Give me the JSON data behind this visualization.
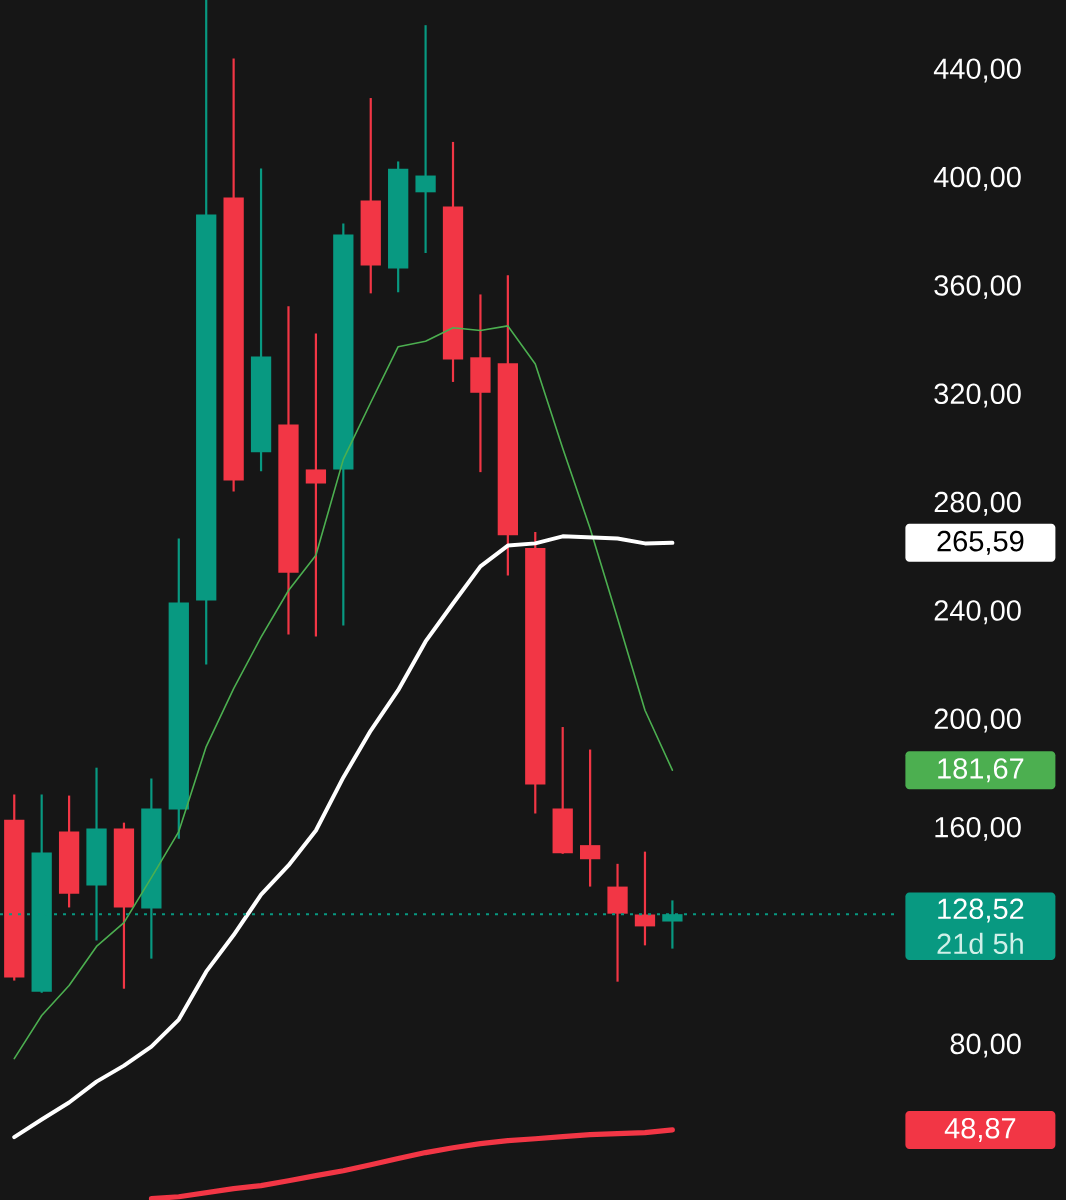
{
  "chart_data": {
    "type": "candlestick",
    "categories": [
      null,
      null,
      null,
      null,
      null,
      null,
      null,
      null,
      null,
      null,
      null,
      null,
      null,
      null,
      null,
      null,
      null,
      null,
      null,
      null,
      null,
      null,
      null,
      null,
      null
    ],
    "ylim": [
      23,
      466
    ],
    "yticks": [
      {
        "value": 80,
        "label": "80,00"
      },
      {
        "value": 160,
        "label": "160,00"
      },
      {
        "value": 200,
        "label": "200,00"
      },
      {
        "value": 240,
        "label": "240,00"
      },
      {
        "value": 280,
        "label": "280,00"
      },
      {
        "value": 320,
        "label": "320,00"
      },
      {
        "value": 360,
        "label": "360,00"
      },
      {
        "value": 400,
        "label": "400,00"
      },
      {
        "value": 440,
        "label": "440,00"
      }
    ],
    "series": [
      {
        "type": "line",
        "color": "#4caf50",
        "values": [
          75.2,
          91.1,
          102.2,
          116.6,
          125.4,
          142,
          159,
          190.4,
          211.8,
          230.8,
          248,
          261,
          296.4,
          317.4,
          338,
          340,
          345,
          344,
          345.7,
          331.6,
          300.5,
          270.9,
          237.7,
          203.8,
          181.67
        ]
      },
      {
        "type": "line",
        "color": "#ffffff",
        "values": [
          46.2,
          52.7,
          59,
          66.7,
          72.6,
          79.6,
          89.6,
          107.3,
          120.8,
          135.7,
          146.5,
          159.4,
          179,
          196.3,
          211.2,
          229.2,
          243.2,
          256.9,
          264.6,
          265.4,
          268,
          267.6,
          267.2,
          265.4,
          265.59
        ]
      },
      {
        "type": "line",
        "color": "#f23645",
        "values": [
          null,
          null,
          null,
          null,
          null,
          23.5,
          24.2,
          25.7,
          27.2,
          28.3,
          30.1,
          32,
          33.8,
          36,
          38.3,
          40.5,
          42.3,
          43.8,
          44.9,
          45.6,
          46.4,
          47.1,
          47.5,
          47.9,
          48.87
        ]
      },
      {
        "ohlc": [
          [
            163.4,
            172.7,
            104,
            105.1
          ],
          [
            99.9,
            172.7,
            99.5,
            151.3
          ],
          [
            159,
            172.3,
            131,
            136.1
          ],
          [
            139.1,
            182.6,
            118.8,
            160.1
          ],
          [
            160.1,
            162.3,
            101,
            131
          ],
          [
            130.6,
            178.6,
            112.1,
            167.5
          ],
          [
            167.2,
            267.2,
            156.4,
            243.6
          ],
          [
            244.3,
            466,
            220.7,
            386.8
          ],
          [
            393.1,
            444.4,
            284.6,
            288.6
          ],
          [
            299,
            403.8,
            292,
            334.4
          ],
          [
            309.3,
            352.9,
            231.8,
            254.6
          ],
          [
            292.7,
            342.9,
            231,
            287.5
          ],
          [
            292.7,
            383.5,
            235.1,
            379.4
          ],
          [
            392,
            429.8,
            357.7,
            368
          ],
          [
            366.9,
            406.4,
            358.1,
            403.7
          ],
          [
            395,
            456.7,
            372.6,
            401.2
          ],
          [
            389.8,
            413.6,
            325,
            333.3
          ],
          [
            334.1,
            357.3,
            291.7,
            321
          ],
          [
            331.9,
            364.4,
            253.5,
            268.4
          ],
          [
            263.7,
            269.6,
            165.7,
            176.4
          ],
          [
            167.5,
            197.6,
            150.8,
            151
          ],
          [
            154,
            189.3,
            138.7,
            148.8
          ],
          [
            138.7,
            147.1,
            103.6,
            128.7
          ],
          [
            128.4,
            151.6,
            117,
            124
          ],
          [
            125.8,
            133.6,
            115.8,
            128.52
          ]
        ],
        "colors": [
          "#f23645",
          "#089981",
          "#f23645",
          "#089981",
          "#f23645",
          "#089981",
          "#089981",
          "#089981",
          "#f23645",
          "#089981",
          "#f23645",
          "#f23645",
          "#089981",
          "#f23645",
          "#089981",
          "#089981",
          "#f23645",
          "#f23645",
          "#f23645",
          "#f23645",
          "#f23645",
          "#f23645",
          "#f23645",
          "#f23645",
          "#089981"
        ]
      }
    ],
    "ref_lines": [
      {
        "axis": "y",
        "value": 128.52,
        "label": "128,52",
        "color": "#089981",
        "line_style": "dotted"
      }
    ],
    "annotations": [
      "21d 5h",
      "181,67",
      "265,59",
      "48,87"
    ]
  }
}
